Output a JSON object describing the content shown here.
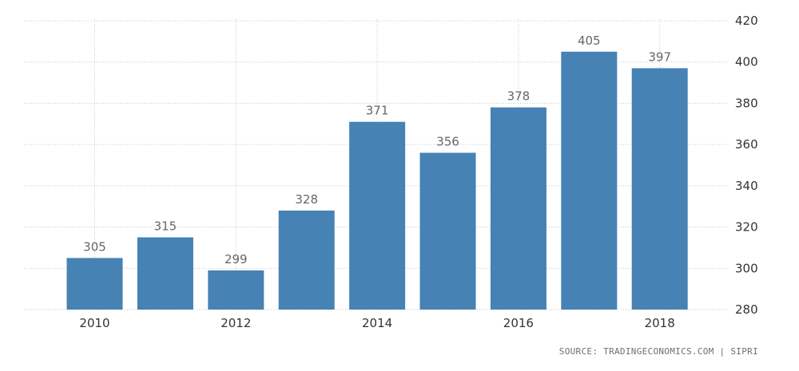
{
  "chart_data": {
    "type": "bar",
    "categories": [
      "2010",
      "2011",
      "2012",
      "2013",
      "2014",
      "2015",
      "2016",
      "2017",
      "2018"
    ],
    "values": [
      305,
      315,
      299,
      328,
      371,
      356,
      378,
      405,
      397
    ],
    "x_tick_labels": [
      "2010",
      "2012",
      "2014",
      "2016",
      "2018"
    ],
    "y_ticks": [
      280,
      300,
      320,
      340,
      360,
      380,
      400,
      420
    ],
    "ylim": [
      280,
      420
    ],
    "bar_color": "#4682b4",
    "grid": true,
    "y_axis_side": "right"
  },
  "source": "SOURCE: TRADINGECONOMICS.COM | SIPRI"
}
